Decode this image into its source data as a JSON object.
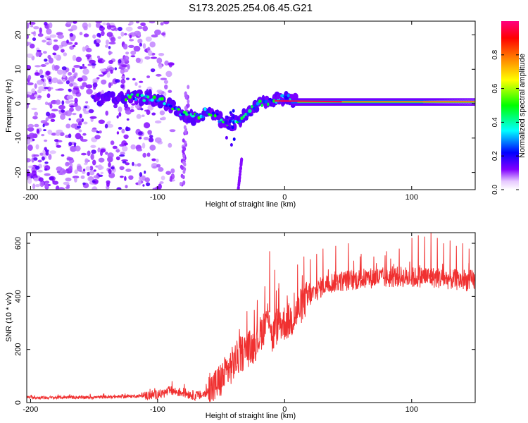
{
  "figure_title": "S173.2025.254.06.45.G21",
  "chart_data": [
    {
      "type": "heatmap",
      "title": "S173.2025.254.06.45.G21",
      "xlabel": "Height of straight line (km)",
      "ylabel": "Frequency (Hz)",
      "xlim": [
        -203,
        150
      ],
      "ylim": [
        -25,
        24
      ],
      "xticks": [
        -200,
        -100,
        0,
        100
      ],
      "yticks": [
        -20,
        -10,
        0,
        10,
        20
      ],
      "colorbar": {
        "label": "Normalized spectral amplitude",
        "range": [
          0.0,
          1.0
        ],
        "ticks": [
          0.0,
          0.2,
          0.4,
          0.6,
          0.8
        ],
        "colormap": [
          "#ffffff",
          "#8000ff",
          "#0000ff",
          "#00ffff",
          "#00ff00",
          "#ffff00",
          "#ff8000",
          "#ff0000",
          "#ff0080"
        ]
      },
      "ridge": {
        "x": [
          -150,
          -120,
          -100,
          -90,
          -80,
          -70,
          -60,
          -50,
          -40,
          -30,
          -20,
          -10,
          -5,
          0,
          5,
          10,
          150
        ],
        "freq": [
          1,
          2,
          1.5,
          -1,
          -3,
          -4,
          -2,
          -5,
          -6,
          -3,
          0,
          1,
          1.5,
          2,
          1,
          0.5,
          0.5
        ]
      }
    },
    {
      "type": "line",
      "xlabel": "Height of straight line (km)",
      "ylabel": "SNR (10 * v/v)",
      "xlim": [
        -203,
        150
      ],
      "ylim": [
        0,
        640
      ],
      "xticks": [
        -200,
        -100,
        0,
        100
      ],
      "yticks": [
        0,
        200,
        400,
        600
      ],
      "color": "#f03030",
      "series": [
        {
          "name": "SNR",
          "x": [
            -203,
            -190,
            -180,
            -170,
            -160,
            -150,
            -140,
            -130,
            -120,
            -110,
            -100,
            -95,
            -90,
            -85,
            -80,
            -75,
            -70,
            -65,
            -60,
            -55,
            -50,
            -45,
            -40,
            -35,
            -30,
            -25,
            -20,
            -15,
            -12,
            -10,
            -5,
            0,
            5,
            10,
            15,
            20,
            25,
            30,
            35,
            40,
            50,
            60,
            70,
            80,
            90,
            100,
            110,
            120,
            130,
            140,
            150
          ],
          "values": [
            20,
            18,
            19,
            20,
            19,
            20,
            21,
            22,
            24,
            26,
            30,
            35,
            45,
            40,
            38,
            32,
            25,
            28,
            40,
            60,
            85,
            120,
            150,
            180,
            200,
            210,
            250,
            300,
            340,
            240,
            300,
            300,
            310,
            340,
            380,
            400,
            420,
            440,
            450,
            455,
            460,
            465,
            470,
            470,
            475,
            470,
            475,
            470,
            465,
            460,
            460
          ]
        }
      ],
      "annotations": {
        "spike_x": [
          -12,
          -8,
          -5,
          10,
          15,
          20,
          25,
          30,
          40,
          50,
          60,
          70,
          80,
          90,
          100,
          105,
          110,
          115,
          120,
          125,
          130,
          135,
          140,
          145
        ],
        "spike_y": [
          570,
          500,
          430,
          520,
          550,
          540,
          560,
          580,
          590,
          600,
          560,
          550,
          570,
          580,
          620,
          630,
          625,
          640,
          620,
          600,
          610,
          590,
          600,
          580
        ]
      }
    }
  ]
}
